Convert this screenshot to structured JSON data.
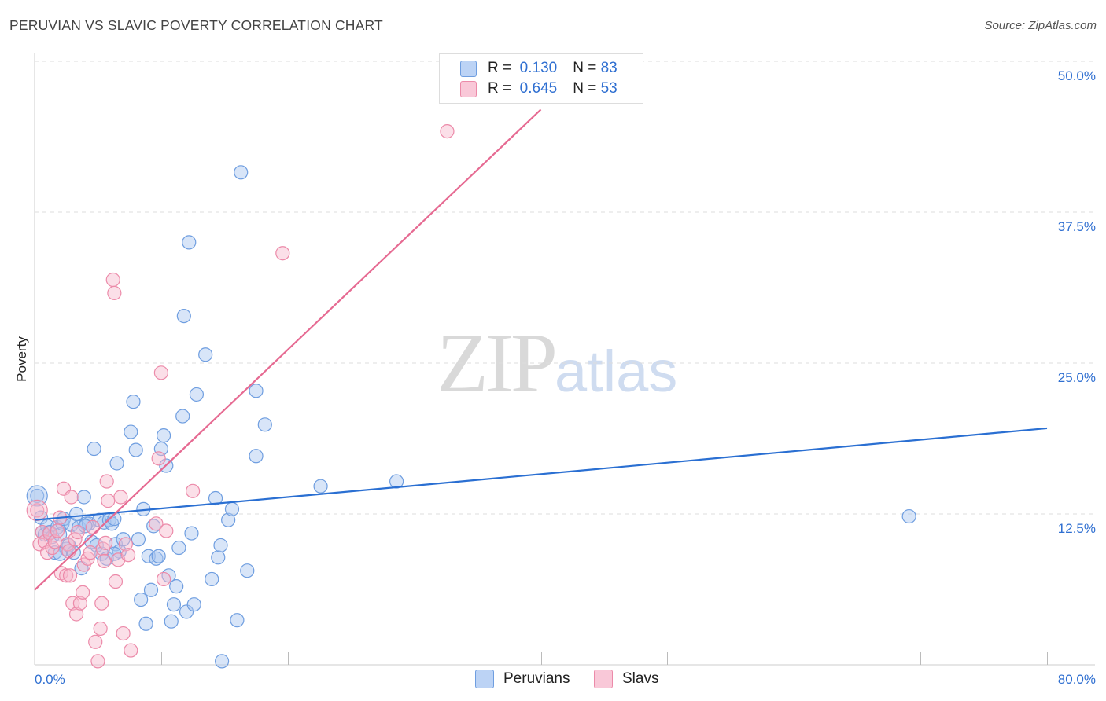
{
  "title": "PERUVIAN VS SLAVIC POVERTY CORRELATION CHART",
  "source": "Source: ZipAtlas.com",
  "watermark": {
    "zip": "ZIP",
    "atlas": "atlas"
  },
  "legend": {
    "rows": [
      {
        "r_label": "R =",
        "r_value": "0.130",
        "n_label": "N =",
        "n_value": "83"
      },
      {
        "r_label": "R =",
        "r_value": "0.645",
        "n_label": "N =",
        "n_value": "53"
      }
    ]
  },
  "bottom_legend": {
    "peruvians": "Peruvians",
    "slavs": "Slavs"
  },
  "colors": {
    "peruvian_fill": "#a9c6f0",
    "peruvian_stroke": "#6f9ee0",
    "peruvian_line": "#2a6fd2",
    "slav_fill": "#f7b9cd",
    "slav_stroke": "#ec8aa9",
    "slav_line": "#e66a92",
    "grid": "#dddddd",
    "label": "#2f6fd1"
  },
  "chart_data": {
    "type": "scatter",
    "title": "PERUVIAN VS SLAVIC POVERTY CORRELATION CHART",
    "xlabel": "",
    "ylabel": "Poverty",
    "xlim": [
      0,
      80
    ],
    "ylim": [
      0,
      50
    ],
    "x_tick_labels": [
      "0.0%",
      "80.0%"
    ],
    "y_ticks": [
      12.5,
      25.0,
      37.5,
      50.0
    ],
    "y_tick_labels": [
      "12.5%",
      "25.0%",
      "37.5%",
      "50.0%"
    ],
    "series": [
      {
        "name": "Peruvians",
        "r": 0.13,
        "n": 83,
        "trend": {
          "x": [
            0,
            80
          ],
          "y": [
            12.0,
            19.6
          ]
        },
        "points": [
          [
            0.2,
            14.0
          ],
          [
            0.5,
            12.2
          ],
          [
            0.6,
            11.0
          ],
          [
            0.8,
            10.8
          ],
          [
            1.0,
            11.5
          ],
          [
            1.2,
            11.0
          ],
          [
            1.4,
            10.6
          ],
          [
            1.6,
            9.3
          ],
          [
            1.8,
            11.4
          ],
          [
            2.0,
            10.8
          ],
          [
            2.2,
            11.7
          ],
          [
            2.3,
            12.1
          ],
          [
            2.5,
            9.6
          ],
          [
            2.7,
            9.9
          ],
          [
            2.9,
            11.6
          ],
          [
            3.1,
            9.3
          ],
          [
            3.3,
            12.5
          ],
          [
            3.5,
            11.4
          ],
          [
            3.7,
            8.0
          ],
          [
            3.9,
            13.9
          ],
          [
            4.1,
            11.7
          ],
          [
            4.3,
            11.7
          ],
          [
            4.5,
            10.2
          ],
          [
            4.7,
            17.9
          ],
          [
            4.9,
            9.9
          ],
          [
            5.1,
            12.0
          ],
          [
            5.3,
            9.2
          ],
          [
            5.5,
            11.8
          ],
          [
            5.7,
            8.8
          ],
          [
            5.9,
            12.0
          ],
          [
            6.1,
            11.7
          ],
          [
            6.3,
            12.1
          ],
          [
            6.4,
            10.0
          ],
          [
            6.5,
            16.7
          ],
          [
            6.7,
            9.4
          ],
          [
            7.0,
            10.4
          ],
          [
            6.3,
            9.2
          ],
          [
            7.6,
            19.3
          ],
          [
            7.8,
            21.8
          ],
          [
            8.0,
            17.8
          ],
          [
            8.2,
            10.4
          ],
          [
            8.4,
            5.4
          ],
          [
            8.6,
            12.9
          ],
          [
            8.8,
            3.4
          ],
          [
            9.0,
            9.0
          ],
          [
            9.2,
            6.2
          ],
          [
            9.4,
            11.5
          ],
          [
            9.6,
            8.8
          ],
          [
            9.8,
            9.0
          ],
          [
            10.0,
            17.9
          ],
          [
            10.2,
            19.0
          ],
          [
            10.4,
            16.5
          ],
          [
            10.6,
            7.4
          ],
          [
            10.8,
            3.6
          ],
          [
            11.0,
            5.0
          ],
          [
            11.2,
            6.5
          ],
          [
            11.4,
            9.7
          ],
          [
            11.7,
            20.6
          ],
          [
            11.8,
            28.9
          ],
          [
            12.0,
            4.4
          ],
          [
            12.2,
            35.0
          ],
          [
            12.4,
            10.9
          ],
          [
            12.6,
            5.0
          ],
          [
            12.8,
            22.4
          ],
          [
            13.5,
            25.7
          ],
          [
            14.0,
            7.1
          ],
          [
            14.3,
            13.8
          ],
          [
            14.5,
            8.9
          ],
          [
            14.7,
            9.9
          ],
          [
            14.8,
            0.3
          ],
          [
            15.3,
            12.0
          ],
          [
            15.6,
            12.9
          ],
          [
            17.5,
            17.3
          ],
          [
            17.5,
            22.7
          ],
          [
            18.2,
            19.9
          ],
          [
            16.3,
            40.8
          ],
          [
            16.0,
            3.7
          ],
          [
            16.8,
            7.8
          ],
          [
            22.6,
            14.8
          ],
          [
            28.6,
            15.2
          ],
          [
            69.1,
            12.3
          ],
          [
            2.0,
            9.2
          ],
          [
            4.0,
            11.5
          ]
        ]
      },
      {
        "name": "Slavs",
        "r": 0.645,
        "n": 53,
        "trend": {
          "x": [
            0,
            40
          ],
          "y": [
            6.2,
            46.0
          ]
        },
        "points": [
          [
            0.2,
            12.8
          ],
          [
            0.4,
            10.0
          ],
          [
            0.6,
            11.0
          ],
          [
            0.8,
            10.2
          ],
          [
            1.0,
            9.3
          ],
          [
            1.2,
            10.9
          ],
          [
            1.4,
            9.7
          ],
          [
            1.6,
            10.2
          ],
          [
            1.8,
            11.1
          ],
          [
            2.0,
            12.2
          ],
          [
            2.1,
            7.6
          ],
          [
            2.3,
            14.6
          ],
          [
            2.5,
            7.4
          ],
          [
            2.6,
            10.0
          ],
          [
            2.7,
            9.4
          ],
          [
            2.8,
            7.4
          ],
          [
            2.9,
            13.9
          ],
          [
            3.0,
            5.1
          ],
          [
            3.2,
            10.4
          ],
          [
            3.3,
            4.2
          ],
          [
            3.4,
            11.0
          ],
          [
            3.6,
            5.1
          ],
          [
            3.8,
            6.0
          ],
          [
            3.9,
            8.3
          ],
          [
            4.2,
            8.8
          ],
          [
            4.4,
            9.3
          ],
          [
            4.6,
            11.4
          ],
          [
            4.8,
            1.9
          ],
          [
            5.0,
            0.3
          ],
          [
            5.2,
            3.0
          ],
          [
            5.3,
            5.1
          ],
          [
            5.4,
            9.6
          ],
          [
            5.5,
            8.6
          ],
          [
            5.6,
            10.1
          ],
          [
            5.7,
            15.2
          ],
          [
            5.8,
            13.6
          ],
          [
            6.2,
            31.9
          ],
          [
            6.3,
            30.8
          ],
          [
            6.4,
            6.9
          ],
          [
            6.6,
            8.7
          ],
          [
            6.8,
            13.9
          ],
          [
            7.0,
            2.6
          ],
          [
            7.2,
            10.0
          ],
          [
            7.4,
            9.1
          ],
          [
            7.6,
            1.2
          ],
          [
            9.6,
            11.7
          ],
          [
            9.8,
            17.1
          ],
          [
            10.0,
            24.2
          ],
          [
            10.2,
            7.1
          ],
          [
            10.4,
            11.1
          ],
          [
            12.5,
            14.4
          ],
          [
            19.6,
            34.1
          ],
          [
            32.6,
            44.2
          ]
        ]
      }
    ]
  }
}
